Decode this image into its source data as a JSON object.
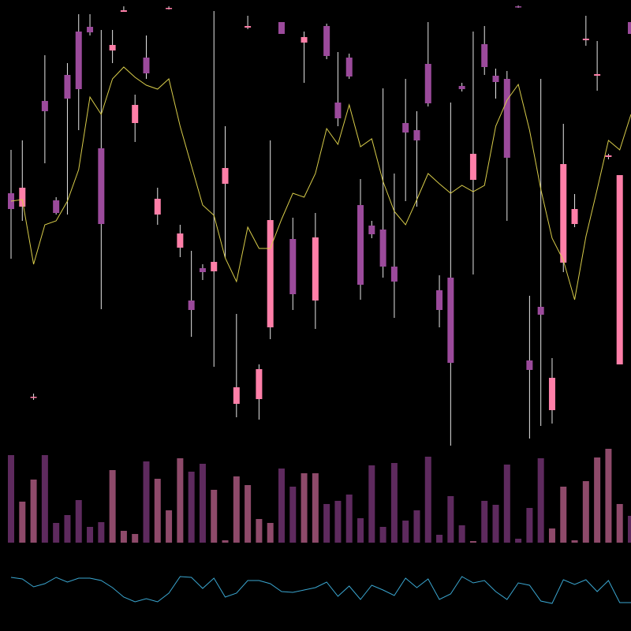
{
  "chart_data": [
    {
      "type": "candlestick",
      "ylim": [
        230,
        800
      ],
      "up_color": "#ff7fa8",
      "down_color": "#9b4a9b",
      "wick_color": "#e6e6e6",
      "open": [
        555,
        538,
        297,
        672,
        546,
        705,
        760,
        766,
        612,
        736,
        785,
        644,
        727,
        528,
        789,
        486,
        419,
        460,
        456,
        567,
        288,
        765,
        294,
        385,
        772,
        497,
        746,
        419,
        767,
        670,
        727,
        540,
        514,
        509,
        462,
        644,
        635,
        719,
        432,
        448,
        691,
        572,
        744,
        704,
        700,
        792,
        343,
        411,
        280,
        467,
        516,
        749,
        704,
        601,
        338,
        772
      ],
      "high": [
        610,
        622,
        301,
        730,
        550,
        720,
        782,
        782,
        762,
        762,
        792,
        680,
        755,
        562,
        792,
        515,
        482,
        465,
        786,
        640,
        402,
        780,
        338,
        622,
        772,
        524,
        760,
        530,
        770,
        734,
        732,
        573,
        520,
        688,
        580,
        700,
        659,
        772,
        451,
        670,
        695,
        760,
        767,
        713,
        710,
        793,
        425,
        700,
        346,
        643,
        554,
        780,
        748,
        605,
        578,
        772
      ],
      "low": [
        472,
        520,
        293,
        593,
        528,
        528,
        635,
        755,
        408,
        720,
        785,
        620,
        700,
        515,
        788,
        474,
        373,
        445,
        335,
        473,
        271,
        763,
        268,
        370,
        757,
        407,
        695,
        383,
        725,
        640,
        700,
        420,
        498,
        448,
        397,
        545,
        538,
        665,
        385,
        235,
        684,
        452,
        705,
        675,
        520,
        790,
        244,
        260,
        263,
        455,
        512,
        742,
        685,
        598,
        338,
        757
      ],
      "close": [
        535,
        562,
        297,
        659,
        530,
        675,
        687,
        759,
        516,
        743,
        787,
        667,
        707,
        548,
        790,
        504,
        407,
        455,
        468,
        587,
        309,
        767,
        332,
        521,
        757,
        427,
        753,
        499,
        729,
        650,
        703,
        439,
        503,
        462,
        443,
        632,
        622,
        669,
        407,
        340,
        687,
        605,
        715,
        696,
        600,
        791,
        331,
        401,
        321,
        592,
        535,
        751,
        706,
        603,
        578,
        757
      ],
      "ma": {
        "color": "#d8cc4a",
        "values": [
          545,
          547,
          465,
          515,
          520,
          545,
          585,
          677,
          655,
          700,
          715,
          702,
          692,
          687,
          700,
          640,
          590,
          540,
          527,
          473,
          443,
          512,
          485,
          485,
          522,
          555,
          550,
          580,
          637,
          617,
          667,
          614,
          624,
          570,
          532,
          515,
          547,
          580,
          567,
          555,
          565,
          557,
          565,
          640,
          673,
          693,
          635,
          560,
          498,
          470,
          420,
          500,
          560,
          622,
          610,
          655
        ]
      }
    },
    {
      "type": "bar",
      "ylim": [
        0,
        120
      ],
      "up_color": "#8e4a6a",
      "down_color": "#5e2a5e",
      "values": [
        111,
        52,
        80,
        111,
        25,
        35,
        54,
        20,
        26,
        92,
        15,
        11,
        103,
        81,
        41,
        107,
        90,
        100,
        67,
        3,
        84,
        73,
        30,
        25,
        94,
        71,
        88,
        88,
        49,
        53,
        61,
        31,
        98,
        20,
        101,
        28,
        41,
        109,
        10,
        59,
        22,
        2,
        53,
        48,
        99,
        5,
        44,
        107,
        18,
        71,
        3,
        78,
        108,
        119,
        49,
        34
      ]
    },
    {
      "type": "line",
      "ylim": [
        0,
        100
      ],
      "color": "#3aa6d0",
      "values": [
        68,
        66,
        56,
        60,
        68,
        62,
        67,
        67,
        64,
        55,
        43,
        37,
        41,
        37,
        48,
        69,
        68,
        54,
        67,
        43,
        48,
        64,
        64,
        60,
        50,
        49,
        52,
        55,
        62,
        44,
        57,
        40,
        58,
        52,
        45,
        67,
        55,
        66,
        40,
        47,
        69,
        61,
        64,
        50,
        40,
        61,
        58,
        38,
        35,
        65,
        59,
        65,
        50,
        64,
        36,
        36
      ]
    }
  ]
}
